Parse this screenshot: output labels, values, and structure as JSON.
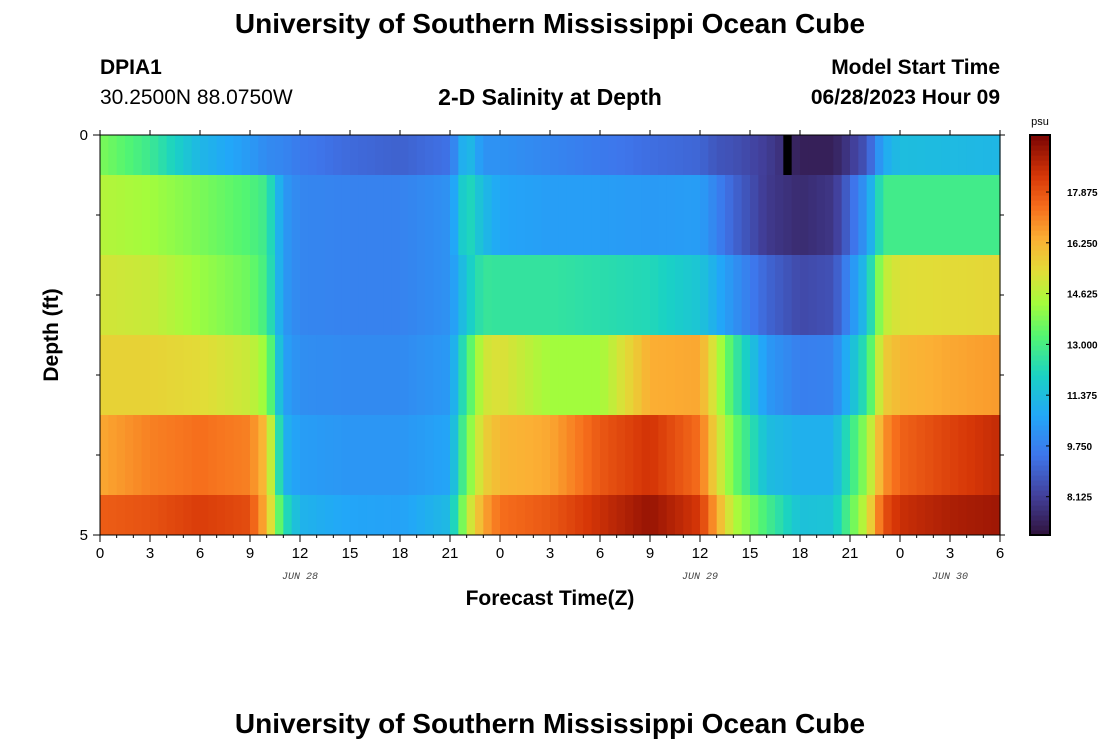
{
  "header": {
    "title": "University of Southern Mississippi Ocean Cube",
    "station_id": "DPIA1",
    "coordinates": "30.2500N  88.0750W",
    "plot_title": "2-D Salinity at Depth",
    "model_start_label": "Model Start Time",
    "model_start_value": "06/28/2023 Hour 09"
  },
  "footer": {
    "title": "University of Southern Mississippi Ocean Cube"
  },
  "chart_data": {
    "type": "heatmap",
    "title": "2-D Salinity at Depth",
    "xlabel": "Forecast Time(Z)",
    "ylabel": "Depth (ft)",
    "x_tick_labels": [
      "0",
      "3",
      "6",
      "9",
      "12",
      "15",
      "18",
      "21",
      "0",
      "3",
      "6",
      "9",
      "12",
      "15",
      "18",
      "21",
      "0",
      "3",
      "6"
    ],
    "x_minor_per_label": 3,
    "x_range_hours": [
      0,
      54
    ],
    "y_tick_labels": [
      "0",
      "5"
    ],
    "y_range": [
      0,
      5
    ],
    "y_minor_ticks": [
      1,
      2,
      3,
      4
    ],
    "date_labels": [
      {
        "text": "JUN 28",
        "hour": 12
      },
      {
        "text": "JUN 29",
        "hour": 36
      },
      {
        "text": "JUN 30",
        "hour": 51
      }
    ],
    "colorbar": {
      "unit": "psu",
      "min": 6.9,
      "max": 19.7,
      "tick_labels": [
        "17.875",
        "16.250",
        "14.625",
        "13.000",
        "11.375",
        "9.750",
        "8.125"
      ],
      "tick_values": [
        17.875,
        16.25,
        14.625,
        13.0,
        11.375,
        9.75,
        8.125
      ]
    },
    "depth_bins": [
      {
        "top": 0,
        "bottom": 0.5
      },
      {
        "top": 0.5,
        "bottom": 1.5
      },
      {
        "top": 1.5,
        "bottom": 2.5
      },
      {
        "top": 2.5,
        "bottom": 3.5
      },
      {
        "top": 3.5,
        "bottom": 4.5
      },
      {
        "top": 4.5,
        "bottom": 5
      }
    ],
    "profile_hours": [
      0,
      3,
      6,
      9,
      10,
      11,
      12,
      15,
      18,
      21,
      22,
      23,
      24,
      27,
      30,
      33,
      36,
      37,
      38,
      40,
      42,
      44,
      46,
      47,
      48,
      51,
      54
    ],
    "salinity_rows": [
      [
        13.8,
        12.8,
        11.2,
        10.4,
        10.0,
        9.9,
        9.6,
        9.2,
        9.0,
        9.4,
        11.5,
        10.2,
        10.2,
        9.9,
        9.6,
        9.3,
        9.1,
        8.7,
        8.6,
        8.1,
        7.3,
        7.3,
        8.7,
        10.8,
        11.4,
        11.3,
        11.2
      ],
      [
        14.6,
        14.3,
        13.8,
        13.2,
        12.8,
        10.4,
        9.9,
        9.8,
        9.8,
        10.2,
        12.4,
        11.3,
        10.7,
        10.5,
        10.5,
        10.4,
        10.5,
        9.8,
        9.1,
        8.0,
        7.6,
        7.9,
        10.4,
        12.9,
        12.9,
        12.9,
        12.9
      ],
      [
        15.1,
        14.9,
        14.2,
        13.6,
        12.9,
        10.4,
        9.9,
        9.8,
        9.8,
        10.2,
        11.7,
        12.7,
        12.6,
        12.6,
        12.4,
        12.2,
        11.6,
        10.9,
        10.2,
        9.1,
        8.4,
        8.6,
        11.5,
        14.7,
        15.3,
        15.4,
        15.5
      ],
      [
        15.6,
        15.6,
        15.4,
        14.9,
        14.1,
        10.6,
        10.1,
        10.0,
        10.0,
        10.4,
        12.9,
        15.0,
        15.3,
        14.3,
        14.3,
        16.4,
        16.5,
        14.8,
        12.9,
        10.4,
        9.7,
        9.8,
        12.6,
        15.7,
        16.2,
        16.5,
        16.7
      ],
      [
        16.5,
        17.1,
        17.4,
        17.1,
        16.0,
        11.1,
        10.5,
        10.3,
        10.3,
        10.7,
        13.6,
        15.6,
        16.2,
        16.5,
        17.8,
        18.5,
        17.4,
        15.4,
        13.7,
        11.4,
        11.0,
        11.0,
        14.2,
        16.8,
        17.6,
        18.2,
        18.7
      ],
      [
        17.7,
        17.9,
        18.3,
        18.0,
        16.2,
        12.5,
        11.1,
        10.7,
        10.6,
        11.3,
        14.6,
        16.5,
        17.4,
        17.8,
        18.6,
        19.3,
        18.4,
        16.5,
        14.6,
        13.0,
        11.5,
        11.6,
        15.0,
        17.9,
        18.6,
        19.0,
        19.2
      ]
    ],
    "missing_cells": [
      {
        "hour_start": 41.0,
        "hour_end": 41.5,
        "depth_top": 0,
        "depth_bottom": 0.5
      }
    ]
  }
}
